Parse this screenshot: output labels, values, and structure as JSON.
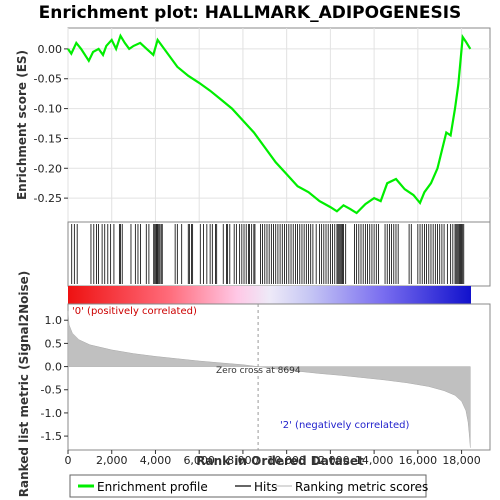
{
  "chart_data": {
    "type": "line",
    "title": "Enrichment plot: HALLMARK_ADIPOGENESIS",
    "x_axis": {
      "label": "Rank in Ordered Dataset",
      "range": [
        0,
        19300
      ],
      "ticks": [
        0,
        2000,
        4000,
        6000,
        8000,
        10000,
        12000,
        14000,
        16000,
        18000
      ],
      "tick_labels": [
        "0",
        "2,000",
        "4,000",
        "6,000",
        "8,000",
        "10,000",
        "12,000",
        "14,000",
        "16,000",
        "18,000"
      ]
    },
    "es_panel": {
      "ylabel": "Enrichment score (ES)",
      "ylim": [
        -0.29,
        0.035
      ],
      "ticks": [
        0.0,
        -0.05,
        -0.1,
        -0.15,
        -0.2,
        -0.25
      ],
      "tick_labels": [
        "0.00",
        "-0.05",
        "-0.10",
        "-0.15",
        "-0.20",
        "-0.25"
      ],
      "grid": true,
      "series": [
        {
          "name": "Enrichment profile",
          "color": "#00ee00",
          "x": [
            0,
            150,
            380,
            600,
            950,
            1150,
            1400,
            1600,
            1750,
            2000,
            2200,
            2400,
            2600,
            2800,
            3000,
            3300,
            3600,
            3900,
            4100,
            4300,
            4600,
            5000,
            5500,
            6000,
            6500,
            7000,
            7500,
            8000,
            8500,
            9000,
            9500,
            10000,
            10500,
            11000,
            11500,
            12000,
            12300,
            12600,
            12900,
            13200,
            13600,
            14000,
            14300,
            14600,
            15000,
            15400,
            15800,
            16100,
            16300,
            16600,
            16900,
            17100,
            17300,
            17500,
            17700,
            17850,
            17950,
            18050,
            18200,
            18400
          ],
          "y": [
            0.0,
            -0.008,
            0.01,
            0.0,
            -0.02,
            -0.005,
            0.0,
            -0.01,
            0.005,
            0.015,
            0.0,
            0.022,
            0.01,
            0.0,
            0.005,
            0.01,
            0.0,
            -0.01,
            0.015,
            0.005,
            -0.01,
            -0.03,
            -0.045,
            -0.057,
            -0.07,
            -0.085,
            -0.1,
            -0.12,
            -0.14,
            -0.165,
            -0.19,
            -0.21,
            -0.23,
            -0.24,
            -0.255,
            -0.265,
            -0.272,
            -0.262,
            -0.268,
            -0.275,
            -0.26,
            -0.25,
            -0.255,
            -0.225,
            -0.218,
            -0.235,
            -0.245,
            -0.258,
            -0.24,
            -0.225,
            -0.2,
            -0.17,
            -0.14,
            -0.145,
            -0.1,
            -0.06,
            -0.02,
            0.02,
            0.012,
            0.0
          ]
        }
      ]
    },
    "hits_panel": {
      "series_name": "Hits",
      "color": "#000000",
      "positions": [
        170,
        290,
        420,
        1050,
        1180,
        1300,
        1390,
        1560,
        1680,
        1820,
        1950,
        2100,
        2350,
        2400,
        2480,
        2880,
        3080,
        3200,
        3320,
        3580,
        3700,
        3920,
        3970,
        4020,
        4060,
        4100,
        4150,
        4200,
        4260,
        4310,
        4900,
        5000,
        5200,
        5500,
        5550,
        5650,
        5700,
        6050,
        6200,
        6350,
        6500,
        6600,
        6750,
        6800,
        7100,
        7250,
        7300,
        7400,
        7600,
        7700,
        7850,
        7950,
        8050,
        8150,
        8250,
        8300,
        8400,
        8500,
        8550,
        8800,
        8900,
        9000,
        9100,
        9200,
        9300,
        9400,
        9500,
        9600,
        9700,
        9800,
        9900,
        10000,
        10100,
        10200,
        10300,
        10400,
        10500,
        10600,
        10700,
        10800,
        10900,
        11000,
        11100,
        11200,
        11350,
        11500,
        11600,
        11700,
        11800,
        11900,
        12000,
        12100,
        12200,
        12300,
        12350,
        12400,
        12450,
        12500,
        12550,
        12600,
        12700,
        13100,
        13200,
        13300,
        13400,
        13500,
        13600,
        13700,
        13800,
        13900,
        14000,
        14100,
        14200,
        14500,
        14600,
        14700,
        14800,
        14900,
        15000,
        15100,
        15600,
        15700,
        16000,
        16100,
        16200,
        16300,
        16400,
        16500,
        16600,
        16700,
        16800,
        16900,
        17000,
        17100,
        17200,
        17350,
        17500,
        17600,
        17700,
        17750,
        17800,
        17850,
        17900,
        17950,
        18000,
        18050,
        18100
      ]
    },
    "metric_panel": {
      "ylabel": "Ranked list metric (Signal2Noise)",
      "ylim": [
        -1.8,
        1.35
      ],
      "ticks": [
        1.0,
        0.5,
        0.0,
        -0.5,
        -1.0,
        -1.5
      ],
      "tick_labels": [
        "1.0",
        "0.5",
        "0.0",
        "-0.5",
        "-1.0",
        "-1.5"
      ],
      "series_name": "Ranking metric scores",
      "color": "#c0c0c0",
      "x": [
        0,
        50,
        200,
        500,
        1000,
        2000,
        3000,
        4000,
        5000,
        6000,
        7000,
        8000,
        8694,
        9500,
        10500,
        11500,
        12500,
        13500,
        14500,
        15500,
        16500,
        17200,
        17700,
        18000,
        18200,
        18300,
        18350,
        18400
      ],
      "y": [
        1.2,
        0.9,
        0.72,
        0.58,
        0.47,
        0.36,
        0.28,
        0.22,
        0.17,
        0.12,
        0.08,
        0.04,
        0.0,
        -0.05,
        -0.1,
        -0.15,
        -0.19,
        -0.24,
        -0.29,
        -0.35,
        -0.43,
        -0.52,
        -0.62,
        -0.75,
        -0.95,
        -1.2,
        -1.45,
        -1.75
      ],
      "zero_cross_label": "Zero cross at 8694",
      "zero_cross": 8694,
      "positive_label": "'0' (positively correlated)",
      "negative_label": "'2' (negatively correlated)"
    },
    "legend": [
      "Enrichment profile",
      "Hits",
      "Ranking metric scores"
    ],
    "legend_colors": [
      "#00ee00",
      "#000000",
      "#c0c0c0"
    ]
  }
}
